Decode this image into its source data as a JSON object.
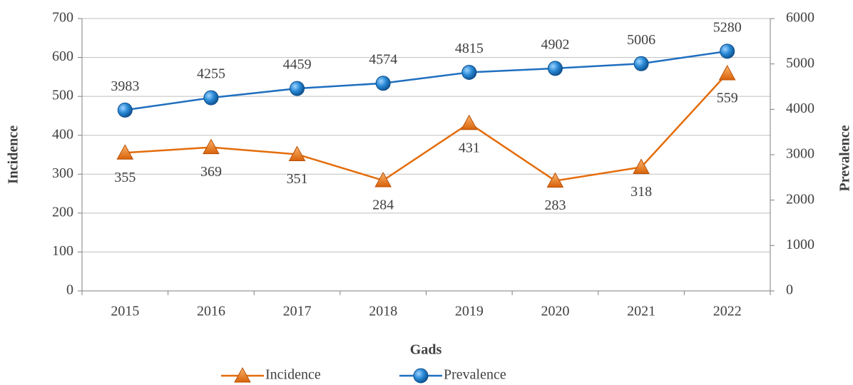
{
  "chart_data": {
    "type": "line",
    "x_label": "Gads",
    "y_label": "Incidence",
    "y2_label": "Prevalence",
    "categories": [
      "2015",
      "2016",
      "2017",
      "2018",
      "2019",
      "2020",
      "2021",
      "2022"
    ],
    "series": [
      {
        "name": "Incidence",
        "color": "#e46c0a",
        "marker": "triangle",
        "values": [
          355,
          369,
          351,
          284,
          431,
          283,
          318,
          559
        ]
      },
      {
        "name": "Prevalence",
        "color": "#1f6fbf",
        "marker": "circle",
        "axis": "y2",
        "values": [
          3983,
          4255,
          4459,
          4574,
          4815,
          4902,
          5006,
          5280
        ]
      }
    ],
    "ylim": [
      0,
      700
    ],
    "yticks": [
      0,
      100,
      200,
      300,
      400,
      500,
      600,
      700
    ],
    "y2lim": [
      0,
      6000
    ],
    "y2ticks": [
      0,
      1000,
      2000,
      3000,
      4000,
      5000,
      6000
    ],
    "grid": true,
    "legend": "bottom"
  }
}
